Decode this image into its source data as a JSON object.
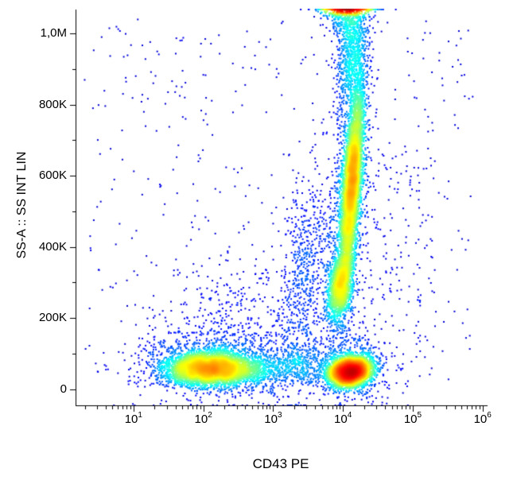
{
  "chart_data": {
    "type": "scatter",
    "subtype": "flow-cytometry-density-dot-plot",
    "title": "",
    "xlabel": "CD43 PE",
    "ylabel": "SS-A :: SS INT LIN",
    "x_scale": "log10",
    "x_range_log": [
      0.17,
      6.06
    ],
    "y_scale": "linear",
    "y_range": [
      -45000,
      1067000
    ],
    "grid": false,
    "legend": false,
    "background_color": "#ffffff",
    "axis_color": "#000000",
    "colormap": "jet",
    "seed": 42,
    "x_ticks": [
      {
        "base": "10",
        "exp": "1",
        "log": 1
      },
      {
        "base": "10",
        "exp": "2",
        "log": 2
      },
      {
        "base": "10",
        "exp": "3",
        "log": 3
      },
      {
        "base": "10",
        "exp": "4",
        "log": 4
      },
      {
        "base": "10",
        "exp": "5",
        "log": 5
      },
      {
        "base": "10",
        "exp": "6",
        "log": 6
      }
    ],
    "x_minor_multipliers": [
      2,
      3,
      4,
      5,
      6,
      7,
      8,
      9
    ],
    "y_ticks": [
      {
        "label": "0",
        "value": 0
      },
      {
        "label": "200K",
        "value": 200000
      },
      {
        "label": "400K",
        "value": 400000
      },
      {
        "label": "600K",
        "value": 600000
      },
      {
        "label": "800K",
        "value": 800000
      },
      {
        "label": "1,0M",
        "value": 1000000
      }
    ],
    "y_minor_step": 100000,
    "clusters": [
      {
        "name": "cluster-bottom-left-core",
        "type": "gauss",
        "n": 5200,
        "cx": 2.12,
        "sx": 0.34,
        "cy": 58000,
        "sy": 23000,
        "corr": 0
      },
      {
        "name": "cluster-bottom-left-halo",
        "type": "gauss",
        "n": 900,
        "cx": 2.2,
        "sx": 0.55,
        "cy": 80000,
        "sy": 52000,
        "corr": 0
      },
      {
        "name": "cluster-bottom-bridge",
        "type": "gauss",
        "n": 480,
        "cx": 3.3,
        "sx": 0.32,
        "cy": 62000,
        "sy": 28000,
        "corr": 0
      },
      {
        "name": "cluster-bottom-right-core",
        "type": "gauss",
        "n": 4800,
        "cx": 4.1,
        "sx": 0.14,
        "cy": 50000,
        "sy": 19000,
        "corr": 0.15
      },
      {
        "name": "cluster-bottom-right-halo",
        "type": "gauss",
        "n": 700,
        "cx": 4.12,
        "sx": 0.25,
        "cy": 62000,
        "sy": 45000,
        "corr": 0
      },
      {
        "name": "cluster-mid-blob",
        "type": "gauss",
        "n": 1700,
        "cx": 3.96,
        "sx": 0.085,
        "cy": 290000,
        "sy": 50000,
        "corr": 0.35
      },
      {
        "name": "cluster-tall-core",
        "type": "gauss",
        "n": 5200,
        "cx": 4.13,
        "sx": 0.06,
        "cy": 580000,
        "sy": 135000,
        "corr": 0.85
      },
      {
        "name": "cluster-tall-halo",
        "type": "gauss",
        "n": 1100,
        "cx": 4.1,
        "sx": 0.14,
        "cy": 560000,
        "sy": 215000,
        "corr": 0.45
      },
      {
        "name": "cluster-column-top",
        "type": "gauss",
        "n": 900,
        "cx": 4.13,
        "sx": 0.1,
        "cy": 950000,
        "sy": 90000,
        "corr": 0.2
      },
      {
        "name": "cluster-top-clipped",
        "type": "gauss",
        "n": 1500,
        "cx": 4.05,
        "sx": 0.16,
        "cy": 1100000,
        "sy": 45000,
        "corr": 0
      },
      {
        "name": "cluster-debris-plume",
        "type": "gauss",
        "n": 750,
        "cx": 3.45,
        "sx": 0.2,
        "cy": 300000,
        "sy": 160000,
        "corr": 0.5
      },
      {
        "name": "cluster-left-mid-scatter",
        "type": "gauss",
        "n": 280,
        "cx": 2.35,
        "sx": 0.5,
        "cy": 200000,
        "sy": 95000,
        "corr": 0
      },
      {
        "name": "background-sparse",
        "type": "uniform",
        "n": 450,
        "x0": 0.3,
        "x1": 5.9,
        "y0": 0,
        "y1": 1040000
      },
      {
        "name": "right-sparse",
        "type": "uniform",
        "n": 140,
        "x0": 4.35,
        "x1": 5.35,
        "y0": 20000,
        "y1": 680000
      }
    ]
  }
}
